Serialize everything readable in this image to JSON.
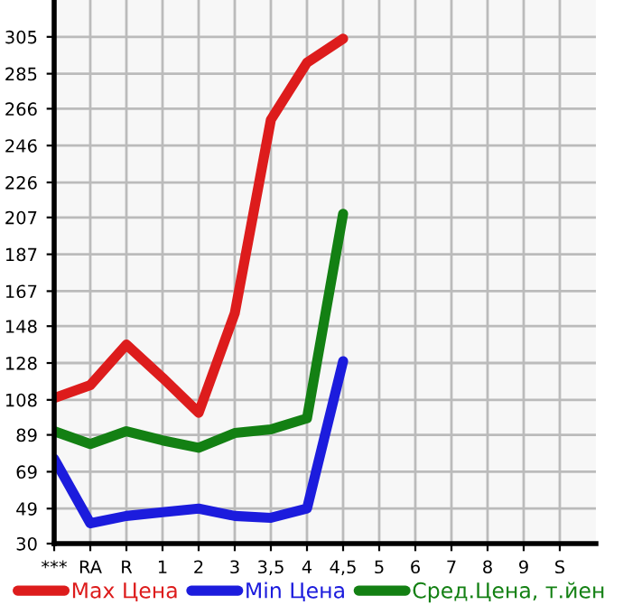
{
  "chart_data": {
    "type": "line",
    "categories": [
      "***",
      "RA",
      "R",
      "1",
      "2",
      "3",
      "3,5",
      "4",
      "4,5",
      "5",
      "6",
      "7",
      "8",
      "9",
      "S"
    ],
    "series": [
      {
        "name": "Max Цена",
        "color": "#dd1c1c",
        "values": [
          109,
          116,
          138,
          120,
          101,
          155,
          260,
          291,
          304,
          null,
          null,
          null,
          null,
          null,
          null
        ]
      },
      {
        "name": "Min Цена",
        "color": "#1c1cdd",
        "values": [
          76,
          41,
          45,
          47,
          49,
          45,
          44,
          49,
          129,
          null,
          null,
          null,
          null,
          null,
          null
        ]
      },
      {
        "name": "Сред.Цена, т.йен",
        "color": "#138013",
        "values": [
          91,
          84,
          91,
          86,
          82,
          90,
          92,
          98,
          209,
          null,
          null,
          null,
          null,
          null,
          null
        ]
      }
    ],
    "ylim": [
      30,
      325
    ],
    "yticks": [
      30,
      49,
      69,
      89,
      108,
      128,
      148,
      167,
      187,
      207,
      226,
      246,
      266,
      285,
      305
    ],
    "grid": true,
    "legend": "bottom",
    "marker": "none",
    "line_style": "solid"
  }
}
